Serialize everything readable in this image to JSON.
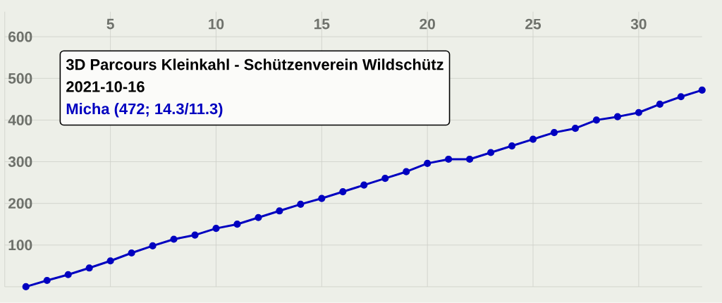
{
  "chart_data": {
    "type": "line",
    "title": "3D Parcours Kleinkahl - Schützenverein Wildschütz",
    "subtitle": "2021-10-16",
    "x": [
      1,
      2,
      3,
      4,
      5,
      6,
      7,
      8,
      9,
      10,
      11,
      12,
      13,
      14,
      15,
      16,
      17,
      18,
      19,
      20,
      21,
      22,
      23,
      24,
      25,
      26,
      27,
      28,
      29,
      30,
      31,
      32,
      33
    ],
    "series": [
      {
        "name": "Micha (472; 14.3/11.3)",
        "color": "#0000c0",
        "values": [
          0,
          15,
          29,
          45,
          62,
          81,
          98,
          114,
          124,
          140,
          150,
          166,
          182,
          198,
          212,
          228,
          244,
          260,
          276,
          296,
          306,
          306,
          322,
          338,
          354,
          370,
          380,
          400,
          408,
          418,
          438,
          456,
          472
        ]
      }
    ],
    "xlim": [
      0,
      33
    ],
    "ylim": [
      0,
      660
    ],
    "xticks": [
      {
        "value": 0,
        "label": null
      },
      5,
      10,
      15,
      20,
      25,
      30
    ],
    "yticks": [
      {
        "value": 0,
        "label": null
      },
      100,
      200,
      300,
      400,
      500,
      600
    ],
    "grid": true,
    "legend": "top left",
    "marker": "circle",
    "line_style": "solid"
  }
}
